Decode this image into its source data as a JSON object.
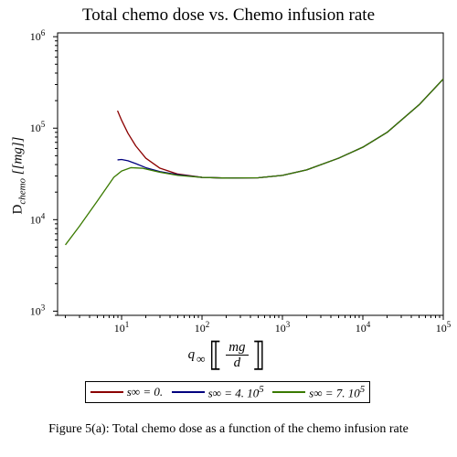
{
  "title": "Total chemo dose vs. Chemo infusion rate",
  "caption": "Figure 5(a): Total chemo dose as a function of the chemo infusion rate",
  "colors": {
    "s0": "#8b0000",
    "s4": "#00007f",
    "s7": "#3a7a00"
  },
  "chart_data": {
    "type": "line",
    "title": "Total chemo dose vs. Chemo infusion rate",
    "xlabel": "q∞ [[mg/d]]",
    "ylabel": "Dchemo [[mg]]",
    "x_scale": "log",
    "y_scale": "log",
    "xlim": [
      1.6,
      100000
    ],
    "ylim": [
      900,
      1100000
    ],
    "x_ticks": [
      {
        "value": 10,
        "base": "10",
        "exp": "1"
      },
      {
        "value": 100,
        "base": "10",
        "exp": "2"
      },
      {
        "value": 1000,
        "base": "10",
        "exp": "3"
      },
      {
        "value": 10000,
        "base": "10",
        "exp": "4"
      },
      {
        "value": 100000,
        "base": "10",
        "exp": "5"
      }
    ],
    "y_ticks": [
      {
        "value": 1000,
        "base": "10",
        "exp": "3"
      },
      {
        "value": 10000,
        "base": "10",
        "exp": "4"
      },
      {
        "value": 100000,
        "base": "10",
        "exp": "5"
      },
      {
        "value": 1000000,
        "base": "10",
        "exp": "6"
      }
    ],
    "grid": false,
    "legend_position": "bottom",
    "series": [
      {
        "name": "s∞ = 0.",
        "color": "#8b0000",
        "points": [
          [
            8.9,
            155000
          ],
          [
            10,
            122000
          ],
          [
            12,
            88000
          ],
          [
            15,
            64000
          ],
          [
            20,
            47000
          ],
          [
            30,
            36500
          ],
          [
            50,
            31500
          ],
          [
            100,
            29000
          ],
          [
            200,
            28500
          ],
          [
            500,
            28700
          ],
          [
            1000,
            30500
          ],
          [
            2000,
            35000
          ],
          [
            5000,
            47000
          ],
          [
            10000,
            62000
          ],
          [
            20000,
            90000
          ],
          [
            50000,
            180000
          ],
          [
            100000,
            345000
          ]
        ]
      },
      {
        "name": "s∞ = 4. 10",
        "name_sup": "5",
        "color": "#00007f",
        "points": [
          [
            8.9,
            45000
          ],
          [
            10,
            45500
          ],
          [
            12,
            44000
          ],
          [
            15,
            41000
          ],
          [
            20,
            37000
          ],
          [
            30,
            33500
          ],
          [
            50,
            31000
          ],
          [
            100,
            29000
          ],
          [
            200,
            28500
          ],
          [
            500,
            28700
          ],
          [
            1000,
            30500
          ],
          [
            2000,
            35000
          ],
          [
            5000,
            47000
          ],
          [
            10000,
            62000
          ],
          [
            20000,
            90000
          ],
          [
            50000,
            180000
          ],
          [
            100000,
            345000
          ]
        ]
      },
      {
        "name": "s∞ = 7. 10",
        "name_sup": "5",
        "color": "#3a7a00",
        "points": [
          [
            2,
            5300
          ],
          [
            3,
            8500
          ],
          [
            5,
            16000
          ],
          [
            8,
            29000
          ],
          [
            10,
            34000
          ],
          [
            13,
            37000
          ],
          [
            18,
            36500
          ],
          [
            30,
            33000
          ],
          [
            50,
            30500
          ],
          [
            100,
            29000
          ],
          [
            200,
            28500
          ],
          [
            500,
            28700
          ],
          [
            1000,
            30500
          ],
          [
            2000,
            35000
          ],
          [
            5000,
            47000
          ],
          [
            10000,
            62000
          ],
          [
            20000,
            90000
          ],
          [
            50000,
            180000
          ],
          [
            100000,
            345000
          ]
        ]
      }
    ]
  }
}
